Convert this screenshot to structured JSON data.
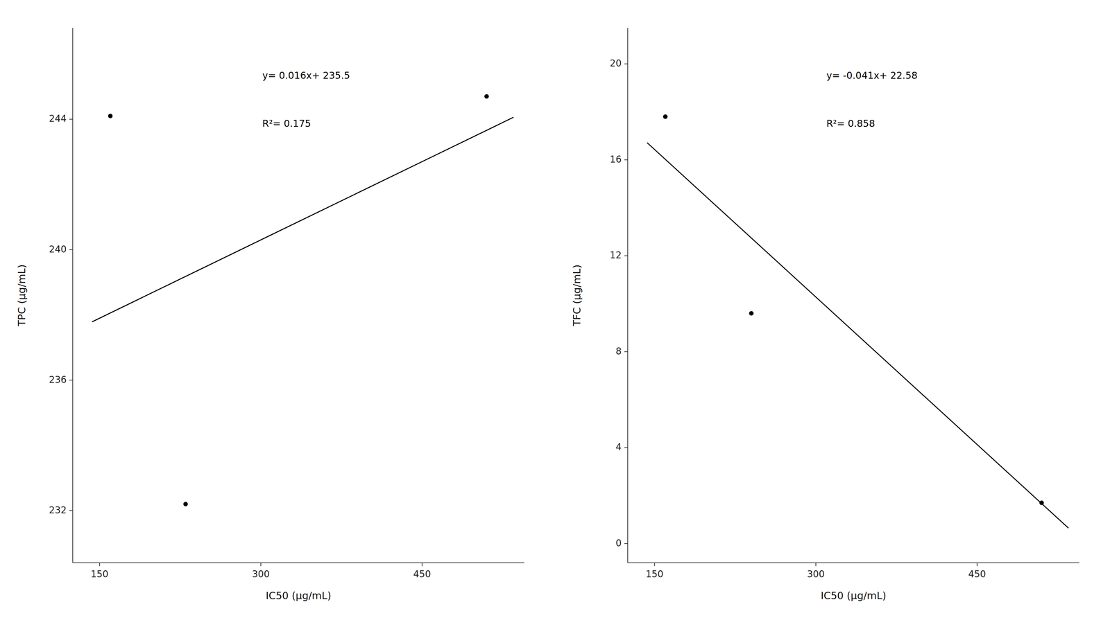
{
  "chart_data": [
    {
      "type": "scatter",
      "xlabel": "IC50 (µg/mL)",
      "ylabel": "TPC (µg/mL)",
      "xlim": [
        125,
        545
      ],
      "ylim": [
        230.4,
        246.8
      ],
      "xticks": [
        150,
        300,
        450
      ],
      "yticks": [
        232,
        236,
        240,
        244
      ],
      "grid": false,
      "annotations": [
        "y= 0.016x+ 235.5",
        "R²= 0.175"
      ],
      "series": [
        {
          "type": "scatter",
          "color": "#000000",
          "x": [
            160,
            230,
            510
          ],
          "values": [
            244.1,
            232.2,
            244.7
          ]
        },
        {
          "type": "line",
          "color": "#000000",
          "x": [
            143,
            535
          ],
          "values": [
            237.788,
            244.06
          ]
        }
      ]
    },
    {
      "type": "scatter",
      "xlabel": "IC50 (µg/mL)",
      "ylabel": "TFC (µg/mL)",
      "xlim": [
        125,
        545
      ],
      "ylim": [
        -0.8,
        21.5
      ],
      "xticks": [
        150,
        300,
        450
      ],
      "yticks": [
        0,
        4,
        8,
        12,
        16,
        20
      ],
      "grid": false,
      "annotations": [
        "y= -0.041x+ 22.58",
        "R²= 0.858"
      ],
      "series": [
        {
          "type": "scatter",
          "color": "#000000",
          "x": [
            160,
            240,
            510
          ],
          "values": [
            17.8,
            9.6,
            1.7
          ]
        },
        {
          "type": "line",
          "color": "#000000",
          "x": [
            143,
            535
          ],
          "values": [
            16.717,
            0.645
          ]
        }
      ]
    }
  ]
}
